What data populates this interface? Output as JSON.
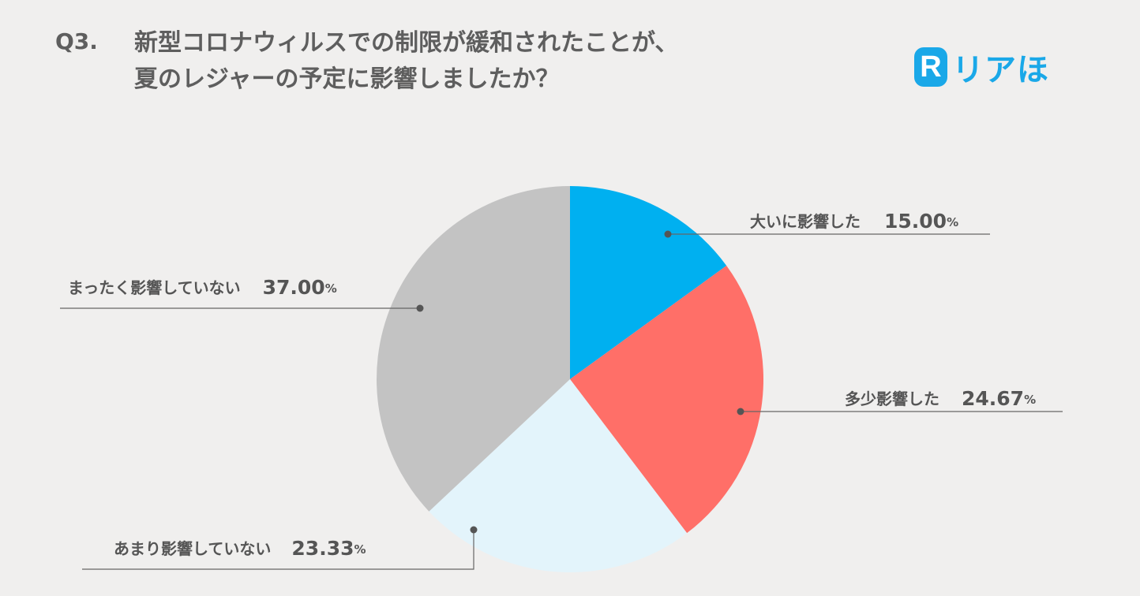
{
  "header": {
    "qnum": "Q3.",
    "line1": "新型コロナウィルスでの制限が緩和されたことが、",
    "line2": "夏のレジャーの予定に影響しましたか？"
  },
  "brand": {
    "mark": "R",
    "text": "リアほ",
    "color": "#1aa8e8"
  },
  "chart_data": {
    "type": "pie",
    "title": "",
    "slices": [
      {
        "label": "大いに影響した",
        "value": 15.0,
        "display": "15.00",
        "color": "#00b0f0"
      },
      {
        "label": "多少影響した",
        "value": 24.67,
        "display": "24.67",
        "color": "#ff6f68"
      },
      {
        "label": "あまり影響していない",
        "value": 23.33,
        "display": "23.33",
        "color": "#e3f4fb"
      },
      {
        "label": "まったく影響していない",
        "value": 37.0,
        "display": "37.00",
        "color": "#c3c3c3"
      }
    ],
    "unit": "%",
    "start": "top",
    "direction": "clockwise"
  }
}
